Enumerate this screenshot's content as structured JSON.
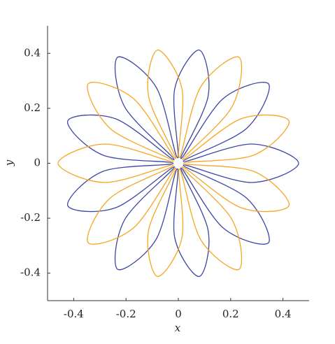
{
  "chart_data": {
    "type": "line",
    "x_label": "x",
    "y_label": "y",
    "xlim": [
      -0.5,
      0.5
    ],
    "ylim": [
      -0.5,
      0.5
    ],
    "xticks": [
      -0.4,
      -0.2,
      0,
      0.2,
      0.4
    ],
    "yticks": [
      -0.4,
      -0.2,
      0,
      0.2,
      0.4
    ],
    "closed": true,
    "series": [
      {
        "color": "#3c46a6",
        "x": [
          0.281,
          0.46,
          0.281,
          0.019,
          0.261,
          0.345,
          0.171,
          0.01,
          0.114,
          0.08,
          -0.014,
          -0.003,
          -0.085,
          -0.232,
          -0.205,
          -0.016,
          -0.24,
          -0.423,
          -0.289,
          -0.02,
          -0.289,
          -0.423,
          -0.24,
          -0.015,
          -0.205,
          -0.232,
          -0.085,
          -0.004,
          -0.014,
          0.08,
          0.114,
          0.01,
          0.171,
          0.345,
          0.261,
          0.019
        ],
        "y": [
          -0.07,
          0,
          0.07,
          0.007,
          0.127,
          0.289,
          0.235,
          0.017,
          0.245,
          0.412,
          0.27,
          0.02,
          0.277,
          0.386,
          0.205,
          0.013,
          0.162,
          0.154,
          0.03,
          0,
          -0.03,
          -0.154,
          -0.162,
          -0.013,
          -0.205,
          -0.386,
          -0.277,
          -0.02,
          -0.27,
          -0.412,
          -0.245,
          -0.017,
          -0.235,
          -0.289,
          -0.127,
          -0.007
        ]
      },
      {
        "color": "#f5a623",
        "x": [
          -0.281,
          -0.46,
          -0.281,
          -0.019,
          -0.261,
          -0.345,
          -0.171,
          -0.01,
          -0.114,
          -0.08,
          0.014,
          0.003,
          0.085,
          0.232,
          0.205,
          0.016,
          0.24,
          0.423,
          0.289,
          0.02,
          0.289,
          0.423,
          0.24,
          0.015,
          0.205,
          0.232,
          0.085,
          0.004,
          0.014,
          -0.08,
          -0.114,
          -0.01,
          -0.171,
          -0.345,
          -0.261,
          -0.019
        ],
        "y": [
          -0.07,
          0,
          0.07,
          0.007,
          0.127,
          0.289,
          0.235,
          0.017,
          0.245,
          0.412,
          0.27,
          0.02,
          0.277,
          0.386,
          0.205,
          0.013,
          0.162,
          0.154,
          0.03,
          0,
          -0.03,
          -0.154,
          -0.162,
          -0.013,
          -0.205,
          -0.386,
          -0.277,
          -0.02,
          -0.27,
          -0.412,
          -0.245,
          -0.017,
          -0.235,
          -0.289,
          -0.127,
          -0.007
        ]
      }
    ]
  }
}
